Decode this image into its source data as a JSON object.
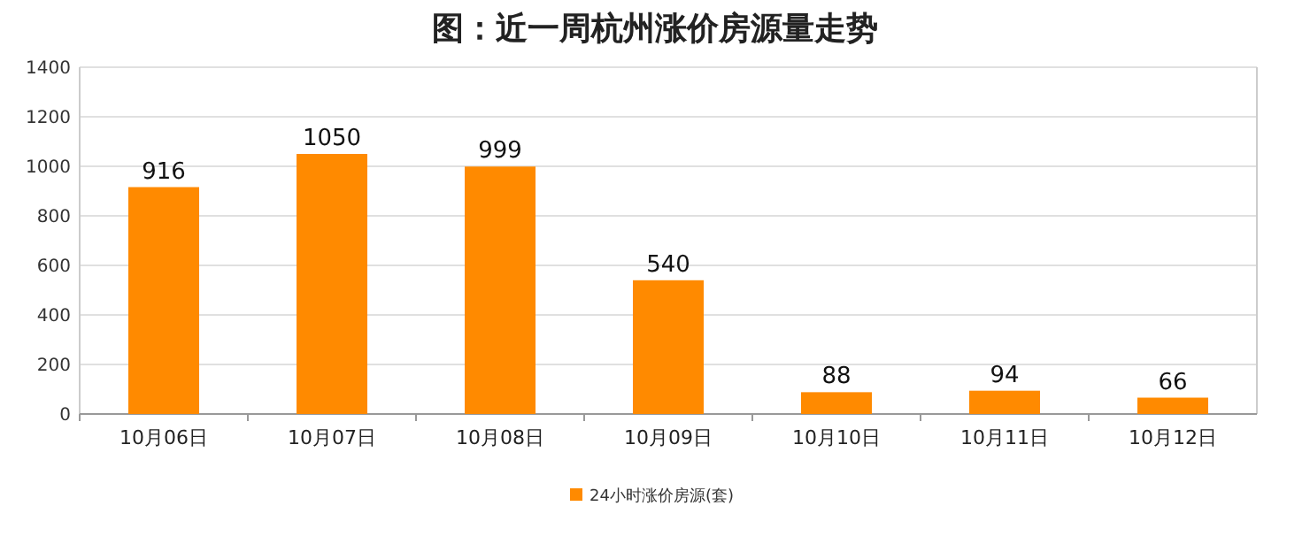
{
  "chart_data": {
    "type": "bar",
    "title": "图：近一周杭州涨价房源量走势",
    "categories": [
      "10月06日",
      "10月07日",
      "10月08日",
      "10月09日",
      "10月10日",
      "10月11日",
      "10月12日"
    ],
    "series": [
      {
        "name": "24小时涨价房源(套)",
        "color": "#ff8a00",
        "values": [
          916,
          1050,
          999,
          540,
          88,
          94,
          66
        ]
      }
    ],
    "ylim": [
      0,
      1400
    ],
    "yticks": [
      0,
      200,
      400,
      600,
      800,
      1000,
      1200,
      1400
    ],
    "grid": "y",
    "legend": "bottom",
    "data_labels": true
  }
}
